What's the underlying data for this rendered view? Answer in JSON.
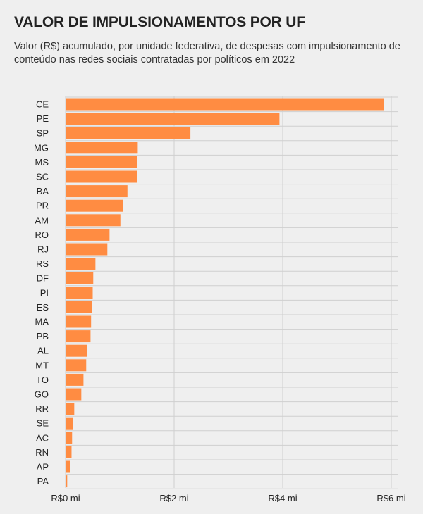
{
  "title": "VALOR DE IMPULSIONAMENTOS POR UF",
  "subtitle": "Valor (R$) acumulado, por unidade federativa, de despesas com impulsionamento de conteúdo nas redes sociais contratadas por políticos em 2022",
  "chart_data": {
    "type": "bar",
    "orientation": "horizontal",
    "title": "VALOR DE IMPULSIONAMENTOS POR UF",
    "subtitle": "Valor (R$) acumulado, por unidade federativa, de despesas com impulsionamento de conteúdo nas redes sociais contratadas por políticos em 2022",
    "categories": [
      "CE",
      "PE",
      "SP",
      "MG",
      "MS",
      "SC",
      "BA",
      "PR",
      "AM",
      "RO",
      "RJ",
      "RS",
      "DF",
      "PI",
      "ES",
      "MA",
      "PB",
      "AL",
      "MT",
      "TO",
      "GO",
      "RR",
      "SE",
      "AC",
      "RN",
      "AP",
      "PA"
    ],
    "values": [
      5.86,
      3.94,
      2.3,
      1.33,
      1.32,
      1.32,
      1.14,
      1.06,
      1.01,
      0.81,
      0.77,
      0.55,
      0.51,
      0.5,
      0.49,
      0.47,
      0.46,
      0.4,
      0.38,
      0.33,
      0.29,
      0.16,
      0.13,
      0.12,
      0.11,
      0.08,
      0.03
    ],
    "value_unit": "R$ milhões",
    "xlim": [
      0,
      6
    ],
    "xticks": [
      0,
      2,
      4,
      6
    ],
    "xtick_labels": [
      "R$0 mi",
      "R$2 mi",
      "R$4 mi",
      "R$6 mi"
    ],
    "xlabel": "",
    "ylabel": "",
    "grid": true,
    "colors": {
      "bar": "#ff8c42",
      "grid": "#cfcfcf",
      "background": "#efefef"
    }
  }
}
